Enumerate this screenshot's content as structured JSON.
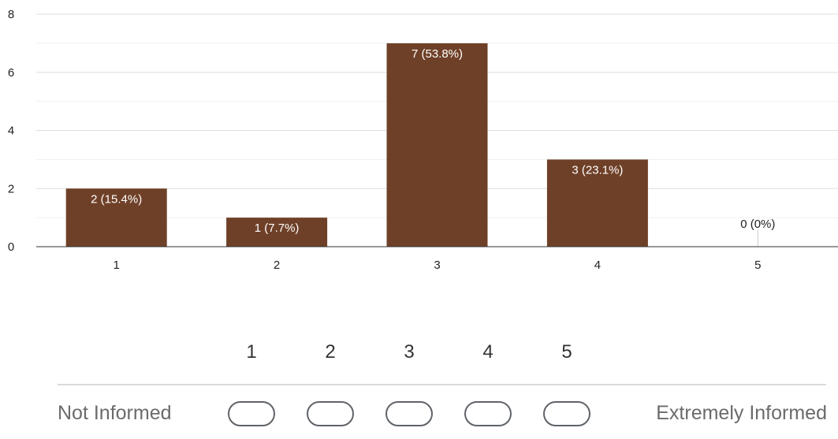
{
  "chart_data": {
    "type": "bar",
    "categories": [
      "1",
      "2",
      "3",
      "4",
      "5"
    ],
    "values": [
      2,
      1,
      7,
      3,
      0
    ],
    "data_labels": [
      "2 (15.4%)",
      "1 (7.7%)",
      "7 (53.8%)",
      "3 (23.1%)",
      "0 (0%)"
    ],
    "ylim": [
      0,
      8
    ],
    "yticks": [
      0,
      2,
      4,
      6,
      8
    ],
    "grid": true,
    "bar_color": "#6f4028"
  },
  "scale": {
    "numbers": [
      "1",
      "2",
      "3",
      "4",
      "5"
    ],
    "low_label": "Not Informed",
    "high_label": "Extremely Informed"
  }
}
